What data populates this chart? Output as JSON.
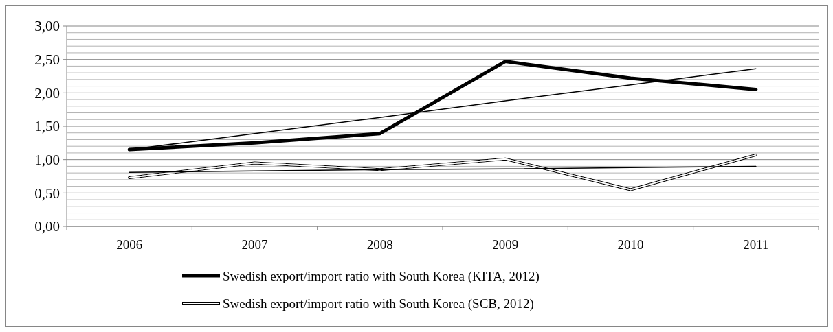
{
  "chart_data": {
    "type": "line",
    "categories": [
      "2006",
      "2007",
      "2008",
      "2009",
      "2010",
      "2011"
    ],
    "series": [
      {
        "name": "Swedish export/import ratio with South Korea (KITA, 2012)",
        "color": "#000000",
        "values": [
          1.15,
          1.25,
          1.39,
          2.47,
          2.22,
          2.05
        ]
      },
      {
        "name": "Swedish export/import ratio with South Korea (SCB, 2012)",
        "color": "#000000",
        "values": [
          0.73,
          0.95,
          0.85,
          1.01,
          0.55,
          1.07
        ]
      },
      {
        "type": "line",
        "color": "#000000",
        "values": [
          1.15,
          1.39,
          1.63,
          1.88,
          2.12,
          2.36
        ]
      },
      {
        "type": "line",
        "color": "#000000",
        "values": [
          0.81,
          0.83,
          0.85,
          0.86,
          0.88,
          0.9
        ]
      }
    ],
    "ylim": [
      0,
      3
    ],
    "yticks": [
      {
        "value": 0,
        "label": "0,00"
      },
      {
        "value": 0.5,
        "label": "0,50"
      },
      {
        "value": 1,
        "label": "1,00"
      },
      {
        "value": 1.5,
        "label": "1,50"
      },
      {
        "value": 2,
        "label": "2,00"
      },
      {
        "value": 2.5,
        "label": "2,50"
      },
      {
        "value": 3,
        "label": "3,00"
      }
    ],
    "grid": "y",
    "legend": "bottom",
    "marker": "none",
    "line_style": "solid"
  }
}
